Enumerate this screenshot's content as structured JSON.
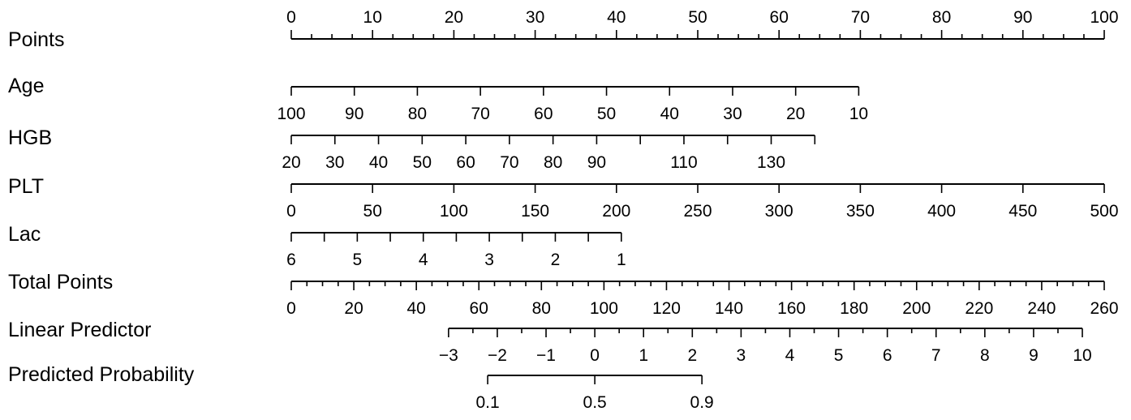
{
  "chart_data": {
    "type": "nomogram",
    "title": "",
    "colors": {
      "line": "#000000",
      "text": "#000000",
      "background": "#ffffff"
    },
    "rows": [
      {
        "name": "Points",
        "scale": "points",
        "ticks_up": true,
        "start": 0,
        "end": 100,
        "start_points": 0,
        "end_points": 100,
        "major_ticks": [
          0,
          10,
          20,
          30,
          40,
          50,
          60,
          70,
          80,
          90,
          100
        ],
        "tick_labels": [
          "0",
          "10",
          "20",
          "30",
          "40",
          "50",
          "60",
          "70",
          "80",
          "90",
          "100"
        ],
        "minor_step": 2.5
      },
      {
        "name": "Age",
        "scale": "points",
        "start": 100,
        "end": 10,
        "start_points": 0,
        "end_points": 69.8,
        "major_ticks": [
          100,
          90,
          80,
          70,
          60,
          50,
          40,
          30,
          20,
          10
        ],
        "tick_labels": [
          "100",
          "90",
          "80",
          "70",
          "60",
          "50",
          "40",
          "30",
          "20",
          "10"
        ]
      },
      {
        "name": "HGB",
        "scale": "points",
        "start": 20,
        "end": 140,
        "start_points": 0,
        "end_points": 64.4,
        "major_ticks": [
          20,
          30,
          40,
          50,
          60,
          70,
          80,
          90,
          100,
          110,
          120,
          130,
          140
        ],
        "tick_labels": [
          "20",
          "30",
          "40",
          "50",
          "60",
          "70",
          "80",
          "90",
          "",
          "110",
          "",
          "130",
          ""
        ]
      },
      {
        "name": "PLT",
        "scale": "points",
        "start": 0,
        "end": 500,
        "start_points": 0,
        "end_points": 100,
        "major_ticks": [
          0,
          50,
          100,
          150,
          200,
          250,
          300,
          350,
          400,
          450,
          500
        ],
        "tick_labels": [
          "0",
          "50",
          "100",
          "150",
          "200",
          "250",
          "300",
          "350",
          "400",
          "450",
          "500"
        ]
      },
      {
        "name": "Lac",
        "scale": "points",
        "start": 6,
        "end": 1,
        "start_points": 0,
        "end_points": 40.6,
        "major_ticks": [
          6,
          5.5,
          5,
          4.5,
          4,
          3.5,
          3,
          2.5,
          2,
          1.5,
          1
        ],
        "tick_labels": [
          "6",
          "",
          "5",
          "",
          "4",
          "",
          "3",
          "",
          "2",
          "",
          "1"
        ]
      },
      {
        "name": "Total Points",
        "scale": "total",
        "total_max": 260,
        "start": 0,
        "end": 260,
        "start_total": 0,
        "end_total": 260,
        "major_ticks": [
          0,
          20,
          40,
          60,
          80,
          100,
          120,
          140,
          160,
          180,
          200,
          220,
          240,
          260
        ],
        "tick_labels": [
          "0",
          "20",
          "40",
          "60",
          "80",
          "100",
          "120",
          "140",
          "160",
          "180",
          "200",
          "220",
          "240",
          "260"
        ],
        "minor_step": 5
      },
      {
        "name": "Linear Predictor",
        "scale": "total",
        "start": -3,
        "end": 10,
        "start_total": 50.3,
        "end_total": 253,
        "major_ticks": [
          -3,
          -2,
          -1,
          0,
          1,
          2,
          3,
          4,
          5,
          6,
          7,
          8,
          9,
          10
        ],
        "tick_labels": [
          "−3",
          "−2",
          "−1",
          "0",
          "1",
          "2",
          "3",
          "4",
          "5",
          "6",
          "7",
          "8",
          "9",
          "10"
        ],
        "minor_step": 0.5
      },
      {
        "name": "Predicted Probability",
        "scale": "logit_of_linear_predictor",
        "start": 0.1,
        "end": 0.9,
        "major_ticks": [
          0.1,
          0.5,
          0.9
        ],
        "tick_labels": [
          "0.1",
          "0.5",
          "0.9"
        ]
      }
    ]
  }
}
